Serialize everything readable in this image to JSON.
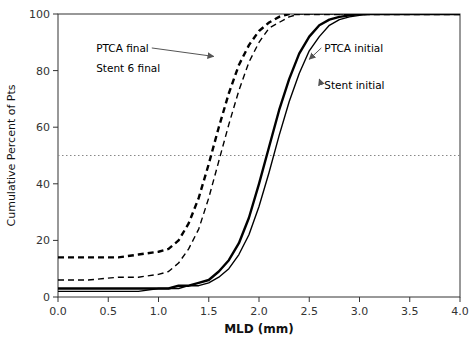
{
  "chart_data": {
    "type": "line",
    "xlabel": "MLD (mm)",
    "ylabel": "Cumulative Percent of Pts",
    "xlim": [
      0.0,
      4.0
    ],
    "ylim": [
      0,
      100
    ],
    "xticks": [
      {
        "value": 0.0,
        "label": "0.0"
      },
      0.5,
      {
        "value": 1.0,
        "label": "1.0"
      },
      1.5,
      {
        "value": 2.0,
        "label": "2.0"
      },
      2.5,
      {
        "value": 3.0,
        "label": "3.0"
      },
      3.5,
      {
        "value": 4.0,
        "label": "4.0"
      }
    ],
    "yticks": [
      0,
      20,
      40,
      60,
      80,
      100
    ],
    "grid": false,
    "reference_line_y": 50,
    "series": [
      {
        "color": "#000000",
        "line_style": "dashed",
        "x": [
          0.0,
          0.3,
          0.6,
          0.8,
          1.0,
          1.1,
          1.2,
          1.3,
          1.4,
          1.5,
          1.6,
          1.7,
          1.8,
          1.9,
          2.0,
          2.1,
          2.2,
          2.3,
          2.4,
          2.5,
          2.6,
          2.8,
          3.0,
          3.5,
          4.0
        ],
        "values": [
          6,
          6,
          7,
          7,
          8,
          9,
          12,
          17,
          24,
          35,
          48,
          61,
          73,
          83,
          90,
          95,
          97,
          99,
          100,
          100,
          100,
          100,
          100,
          100,
          100
        ]
      },
      {
        "color": "#000000",
        "line_style": "dashed",
        "x": [
          0.0,
          0.3,
          0.6,
          0.8,
          1.0,
          1.1,
          1.2,
          1.3,
          1.4,
          1.5,
          1.6,
          1.7,
          1.8,
          1.9,
          2.0,
          2.1,
          2.2,
          2.3,
          2.4,
          2.5,
          2.6,
          2.8,
          3.0,
          3.5,
          4.0
        ],
        "values": [
          14,
          14,
          14,
          15,
          16,
          17,
          20,
          26,
          35,
          47,
          60,
          72,
          82,
          89,
          94,
          97,
          99,
          100,
          100,
          100,
          100,
          100,
          100,
          100,
          100
        ]
      },
      {
        "color": "#000000",
        "line_style": "solid",
        "x": [
          0.0,
          0.5,
          0.8,
          1.0,
          1.1,
          1.2,
          1.3,
          1.4,
          1.5,
          1.6,
          1.7,
          1.8,
          1.9,
          2.0,
          2.1,
          2.2,
          2.3,
          2.4,
          2.5,
          2.6,
          2.7,
          2.8,
          2.9,
          3.0,
          3.1,
          3.2,
          3.5,
          4.0
        ],
        "values": [
          2,
          2,
          2,
          3,
          3,
          3,
          4,
          4,
          5,
          7,
          10,
          15,
          22,
          32,
          44,
          57,
          69,
          79,
          87,
          92,
          96,
          98,
          99,
          99.5,
          100,
          100,
          100,
          100
        ]
      },
      {
        "color": "#000000",
        "line_style": "solid",
        "x": [
          0.0,
          0.5,
          0.8,
          1.0,
          1.1,
          1.2,
          1.3,
          1.4,
          1.5,
          1.6,
          1.7,
          1.8,
          1.9,
          2.0,
          2.1,
          2.2,
          2.3,
          2.4,
          2.5,
          2.6,
          2.7,
          2.8,
          2.9,
          3.0,
          3.1,
          3.2,
          3.5,
          4.0
        ],
        "values": [
          3,
          3,
          3,
          3,
          3,
          4,
          4,
          5,
          6,
          9,
          13,
          19,
          28,
          40,
          53,
          66,
          77,
          86,
          92,
          96,
          98,
          99,
          99.5,
          100,
          100,
          100,
          100,
          100
        ]
      }
    ],
    "annotations": [
      {
        "text": "PTCA final",
        "x": 0.38,
        "y": 88,
        "arrow_x": 1.55,
        "arrow_y": 85
      },
      {
        "text": "Stent 6 final",
        "x": 0.38,
        "y": 81
      },
      {
        "text": "PTCA initial",
        "x": 2.65,
        "y": 88,
        "arrow_x": 2.5,
        "arrow_y": 84
      },
      {
        "text": "Stent initial",
        "x": 2.65,
        "y": 75,
        "arrow_x": 2.6,
        "arrow_y": 77
      }
    ]
  }
}
